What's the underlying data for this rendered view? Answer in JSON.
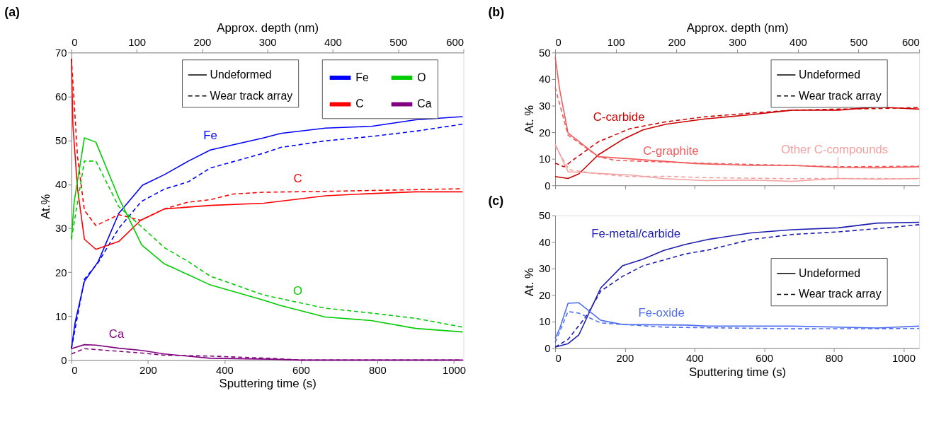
{
  "chart_data": [
    {
      "type": "line",
      "title": "(a)",
      "xlabel": "Sputtering time (s)",
      "x2label": "Approx. depth (nm)",
      "ylabel": "At.%",
      "xlim": [
        0,
        1025
      ],
      "xticks": [
        0,
        200,
        400,
        600,
        800,
        1000
      ],
      "x2lim": [
        0,
        600
      ],
      "x2ticks": [
        0,
        100,
        200,
        300,
        400,
        500,
        600
      ],
      "ylim": [
        0,
        70
      ],
      "yticks": [
        0,
        10,
        20,
        30,
        40,
        50,
        60,
        70
      ],
      "grid": false,
      "legend": "top right",
      "annotations": [
        "Undeformed",
        "Wear track array"
      ],
      "series": [
        {
          "name": "Fe",
          "color": "#0000ff",
          "line_style": "solid",
          "x": [
            0,
            10,
            34,
            70,
            124,
            186,
            243,
            306,
            363,
            503,
            547,
            664,
            784,
            900,
            1023
          ],
          "values": [
            2.6,
            8.7,
            17.9,
            22.4,
            33.4,
            39.8,
            42.2,
            45.3,
            47.8,
            50.6,
            51.6,
            52.8,
            53.2,
            54.7,
            55.4
          ]
        },
        {
          "color": "#0000ff",
          "line_style": "dashed",
          "x": [
            0,
            34,
            70,
            124,
            183,
            243,
            306,
            363,
            503,
            547,
            664,
            784,
            900,
            1023
          ],
          "values": [
            2.6,
            18.4,
            22.2,
            30,
            36.1,
            38.9,
            40.6,
            43.7,
            47.1,
            48.4,
            49.9,
            50.9,
            52.1,
            53.7
          ]
        },
        {
          "name": "C",
          "color": "#ff0000",
          "line_style": "solid",
          "x": [
            0,
            4,
            16,
            34,
            64,
            124,
            181,
            243,
            363,
            503,
            664,
            784,
            900,
            1023
          ],
          "values": [
            68.6,
            53.4,
            39,
            27.5,
            25.2,
            27,
            31.8,
            34.4,
            35.2,
            35.7,
            37.4,
            37.9,
            38.3,
            38.3
          ]
        },
        {
          "color": "#ff0000",
          "line_style": "dashed",
          "x": [
            0,
            16,
            34,
            64,
            124,
            160,
            181,
            243,
            303,
            363,
            423,
            503,
            664,
            784,
            1023
          ],
          "values": [
            68.6,
            46.3,
            34.1,
            30.6,
            33.1,
            32.3,
            31.8,
            34.4,
            35.9,
            36.5,
            37.8,
            38.2,
            38.4,
            38.6,
            39
          ]
        },
        {
          "name": "O",
          "color": "#00cc00",
          "line_style": "solid",
          "x": [
            0,
            7,
            34,
            64,
            124,
            184,
            243,
            306,
            363,
            503,
            547,
            664,
            784,
            900,
            1023
          ],
          "values": [
            27.5,
            35.9,
            50.6,
            49.6,
            36.9,
            26.2,
            21.9,
            19.4,
            17.1,
            13.6,
            12.4,
            9.8,
            9,
            7.2,
            6.4
          ]
        },
        {
          "color": "#00cc00",
          "line_style": "dashed",
          "x": [
            0,
            34,
            64,
            124,
            184,
            243,
            306,
            363,
            503,
            664,
            784,
            900,
            1023
          ],
          "values": [
            27.5,
            45.3,
            45.3,
            34.9,
            30.3,
            25.6,
            22.4,
            19.1,
            14.8,
            11.8,
            10.7,
            9.5,
            7.5
          ]
        },
        {
          "name": "Ca",
          "color": "#800080",
          "line_style": "solid",
          "x": [
            0,
            34,
            64,
            124,
            184,
            243,
            363,
            519,
            600,
            1023
          ],
          "values": [
            2.6,
            3.5,
            3.4,
            2.7,
            2.2,
            1.4,
            0.4,
            0.2,
            0,
            0
          ]
        },
        {
          "color": "#800080",
          "line_style": "dashed",
          "x": [
            0,
            34,
            64,
            124,
            184,
            243,
            363,
            519,
            600,
            1023
          ],
          "values": [
            1.4,
            2.6,
            2.4,
            2,
            1.6,
            1.1,
            0.9,
            0.4,
            0,
            0
          ]
        }
      ]
    },
    {
      "type": "line",
      "title": "(b)",
      "x2label": "Approx. depth (nm)",
      "ylabel": "At. %",
      "xlim": [
        0,
        1045
      ],
      "xticks": [
        0,
        200,
        400,
        600,
        800,
        1000
      ],
      "tick_labels": "y",
      "x2lim": [
        0,
        600
      ],
      "x2ticks": [
        0,
        100,
        200,
        300,
        400,
        500,
        600
      ],
      "ylim": [
        0,
        50
      ],
      "yticks": [
        0,
        10,
        20,
        30,
        40,
        50
      ],
      "grid": false,
      "annotations": [
        "Undeformed",
        "Wear track array"
      ],
      "series": [
        {
          "name": "C-carbide",
          "color": "#cc0000",
          "line_style": "solid",
          "x": [
            0,
            37,
            68,
            124,
            193,
            252,
            318,
            430,
            562,
            680,
            812,
            924,
            1045
          ],
          "values": [
            3.3,
            2.6,
            4.3,
            11.5,
            17.2,
            20.9,
            23,
            25,
            26.6,
            28.3,
            28.3,
            29.5,
            28.7
          ]
        },
        {
          "color": "#cc0000",
          "line_style": "dashed",
          "x": [
            0,
            26,
            54,
            124,
            214,
            312,
            430,
            562,
            680,
            812,
            924,
            1045
          ],
          "values": [
            8.4,
            7,
            9.8,
            16.4,
            21.3,
            23.8,
            25.8,
            27.2,
            28.3,
            28.7,
            28.9,
            29.3
          ]
        },
        {
          "name": "C-graphite",
          "color": "#f05a5a",
          "line_style": "solid",
          "x": [
            0,
            13,
            37,
            124,
            214,
            402,
            562,
            680,
            812,
            924,
            1045
          ],
          "values": [
            48.4,
            36,
            19.7,
            10.8,
            10,
            8.2,
            7.5,
            7.5,
            6.7,
            6.6,
            7
          ]
        },
        {
          "color": "#f05a5a",
          "line_style": "dashed",
          "x": [
            0,
            37,
            124,
            172,
            402,
            680,
            812,
            1045
          ],
          "values": [
            36.9,
            18.9,
            10.8,
            9.4,
            8.4,
            7.5,
            7,
            7.2
          ]
        },
        {
          "name": "Other C-compounds",
          "color": "#f4a0a0",
          "line_style": "solid",
          "x": [
            0,
            37,
            124,
            214,
            312,
            430,
            562,
            680,
            812,
            924,
            1045
          ],
          "values": [
            15.6,
            5.1,
            4.5,
            3.9,
            2.5,
            1.8,
            2,
            1.5,
            2.6,
            2.3,
            2.6
          ]
        },
        {
          "color": "#f4a0a0",
          "line_style": "dashed",
          "x": [
            0,
            40,
            124,
            214,
            312,
            430,
            680,
            812,
            1045
          ],
          "values": [
            14.8,
            5.9,
            4.3,
            3.3,
            3.4,
            2.9,
            2.5,
            2.6,
            2.5
          ]
        }
      ]
    },
    {
      "type": "line",
      "title": "(c)",
      "xlabel": "Sputtering time (s)",
      "ylabel": "At. %",
      "xlim": [
        0,
        1045
      ],
      "xticks": [
        0,
        200,
        400,
        600,
        800,
        1000
      ],
      "ylim": [
        0,
        50
      ],
      "yticks": [
        0,
        10,
        20,
        30,
        40,
        50
      ],
      "grid": false,
      "annotations": [
        "Undeformed",
        "Wear track array"
      ],
      "series": [
        {
          "name": "Fe-metal/carbide",
          "color": "#1c1cb0",
          "line_style": "solid",
          "x": [
            0,
            37,
            68,
            131,
            193,
            252,
            312,
            374,
            437,
            562,
            680,
            812,
            924,
            1045
          ],
          "values": [
            0.4,
            1.7,
            5,
            22.7,
            31,
            33.5,
            36.8,
            39.1,
            40.9,
            43.4,
            44.6,
            45.3,
            47.1,
            47.4
          ]
        },
        {
          "color": "#1c1cb0",
          "line_style": "dashed",
          "x": [
            0,
            37,
            89,
            131,
            193,
            252,
            374,
            437,
            562,
            680,
            812,
            924,
            1045
          ],
          "values": [
            0.4,
            3.3,
            12,
            21.5,
            27,
            31,
            35.5,
            36.9,
            40.9,
            42.8,
            43.8,
            45,
            46.5
          ]
        },
        {
          "name": "Fe-oxide",
          "color": "#4f6ff0",
          "line_style": "solid",
          "x": [
            0,
            13,
            37,
            68,
            131,
            193,
            374,
            437,
            680,
            924,
            1045
          ],
          "values": [
            3.7,
            7.4,
            16.9,
            17.1,
            10.5,
            8.9,
            8.7,
            8.3,
            8.3,
            7.6,
            8.3
          ]
        },
        {
          "color": "#4f6ff0",
          "line_style": "dashed",
          "x": [
            0,
            37,
            68,
            131,
            312,
            680,
            1045
          ],
          "values": [
            2.1,
            13.8,
            13.2,
            9.5,
            7.9,
            7.3,
            7.4
          ]
        }
      ]
    }
  ]
}
